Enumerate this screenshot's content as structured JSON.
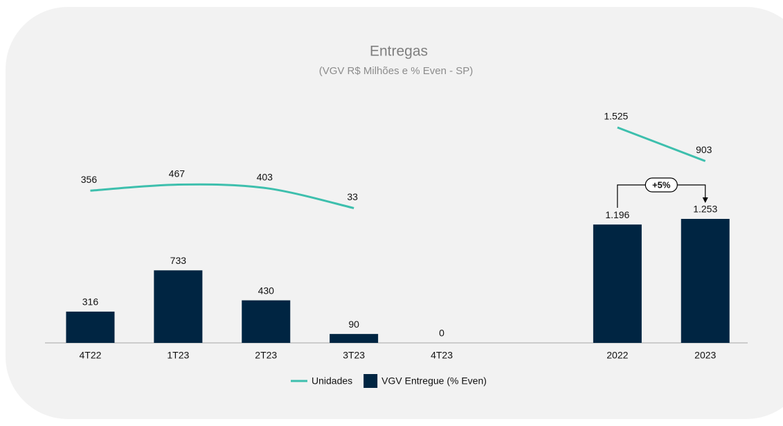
{
  "chart_data": {
    "type": "bar",
    "title": "Entregas",
    "subtitle": "(VGV R$ Milhões e % Even - SP)",
    "categories": [
      "4T22",
      "1T23",
      "2T23",
      "3T23",
      "4T23",
      null,
      "2022",
      "2023"
    ],
    "series": [
      {
        "name": "Unidades",
        "type": "line",
        "color": "#3dbfad",
        "values": [
          356,
          467,
          403,
          33,
          null,
          null,
          1525,
          903
        ],
        "value_labels": [
          "356",
          "467",
          "403",
          "33",
          null,
          null,
          "1.525",
          "903"
        ]
      },
      {
        "name": "VGV Entregue (% Even)",
        "type": "bar",
        "color": "#002542",
        "values": [
          316,
          733,
          430,
          90,
          0,
          null,
          1196,
          1253
        ],
        "value_labels": [
          "316",
          "733",
          "430",
          "90",
          "0",
          null,
          "1.196",
          "1.253"
        ]
      }
    ],
    "annotation": "+5%"
  }
}
